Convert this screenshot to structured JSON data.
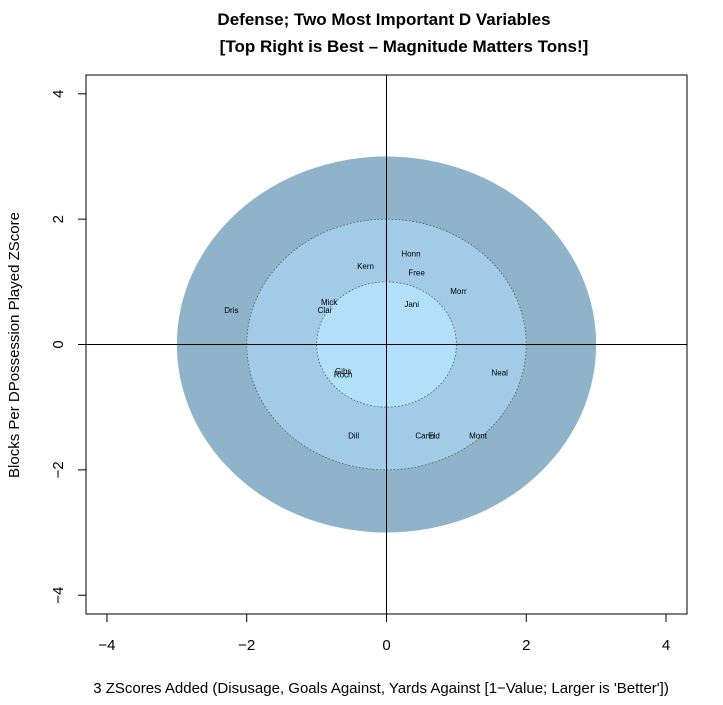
{
  "chart_data": {
    "type": "scatter",
    "title": "Defense; Two Most Important D Variables",
    "subtitle": "[Top Right is Best – Magnitude Matters Tons!]",
    "xlabel": "3 ZScores Added (Disusage, Goals Against, Yards Against [1−Value; Larger is 'Better'])",
    "ylabel": "Blocks Per DPossession Played ZScore",
    "xlim": [
      -4.3,
      4.3
    ],
    "ylim": [
      -4.3,
      4.3
    ],
    "x_ticks": [
      -4,
      -2,
      0,
      2,
      4
    ],
    "y_ticks": [
      -4,
      -2,
      0,
      2,
      4
    ],
    "x_tick_labels": [
      "−4",
      "−2",
      "0",
      "2",
      "4"
    ],
    "y_tick_labels": [
      "−4",
      "−2",
      "0",
      "2",
      "4"
    ],
    "grid": false,
    "reference_lines": {
      "x": 0,
      "y": 0
    },
    "regions": [
      {
        "radius_x": 3,
        "radius_y": 3,
        "color": "#8fb3c9"
      },
      {
        "radius_x": 2,
        "radius_y": 2,
        "color": "#a1cbe6"
      },
      {
        "radius_x": 1,
        "radius_y": 1,
        "color": "#b2dff9"
      }
    ],
    "points": [
      {
        "label": "Honn",
        "x": 0.35,
        "y": 1.45
      },
      {
        "label": "Kern",
        "x": -0.3,
        "y": 1.25
      },
      {
        "label": "Free",
        "x": 0.43,
        "y": 1.15
      },
      {
        "label": "Morr",
        "x": 1.03,
        "y": 0.85
      },
      {
        "label": "Mick",
        "x": -0.82,
        "y": 0.68
      },
      {
        "label": "Jani",
        "x": 0.36,
        "y": 0.65
      },
      {
        "label": "Clar",
        "x": -0.88,
        "y": 0.55
      },
      {
        "label": "Dris",
        "x": -2.22,
        "y": 0.55
      },
      {
        "label": "Gibs",
        "x": -0.62,
        "y": -0.42
      },
      {
        "label": "Roch",
        "x": -0.62,
        "y": -0.48
      },
      {
        "label": "Neal",
        "x": 1.62,
        "y": -0.45
      },
      {
        "label": "Dill",
        "x": -0.47,
        "y": -1.45
      },
      {
        "label": "Cann",
        "x": 0.55,
        "y": -1.45
      },
      {
        "label": "Eld",
        "x": 0.68,
        "y": -1.45
      },
      {
        "label": "Mont",
        "x": 1.31,
        "y": -1.45
      }
    ]
  }
}
